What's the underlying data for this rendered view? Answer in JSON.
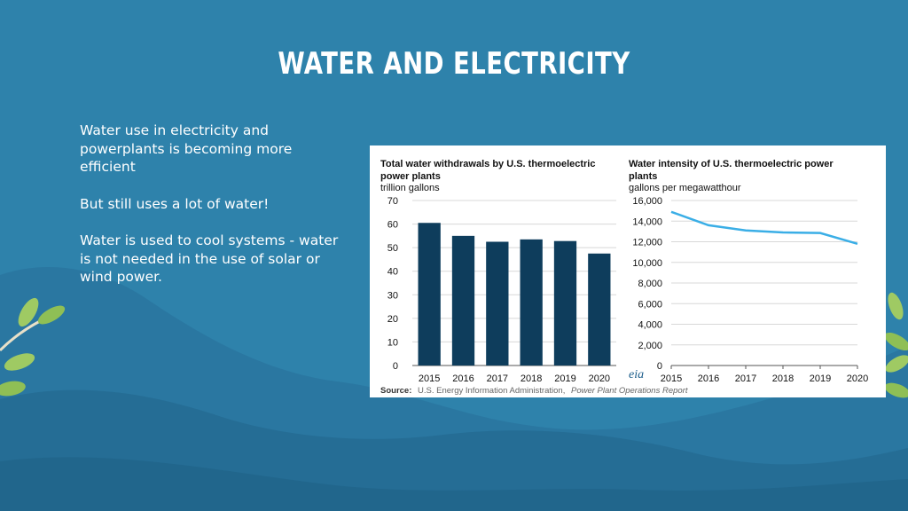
{
  "slide": {
    "title": "WATER AND ELECTRICITY",
    "paragraphs": [
      "Water use in electricity and powerplants is becoming more efficient",
      "But still uses a lot of water!",
      "Water is used to cool systems - water is not needed in the use of solar or wind power."
    ]
  },
  "colors": {
    "background": "#2e82ab",
    "bar": "#0e3d5c",
    "line": "#3aaee6",
    "leaf": "#9fca63"
  },
  "source": {
    "label": "Source:",
    "text": "U.S. Energy Information Administration,",
    "report": "Power Plant Operations Report"
  },
  "chart_data": [
    {
      "type": "bar",
      "title_lines": [
        "Total water withdrawals by U.S. thermoelectric",
        "power plants"
      ],
      "units": "trillion gallons",
      "categories": [
        "2015",
        "2016",
        "2017",
        "2018",
        "2019",
        "2020"
      ],
      "values": [
        60.5,
        55,
        52.5,
        53.5,
        52.8,
        47.5
      ],
      "ylim": [
        0,
        70
      ],
      "yticks": [
        "0",
        "10",
        "20",
        "30",
        "40",
        "50",
        "60",
        "70"
      ]
    },
    {
      "type": "line",
      "title_lines": [
        "Water intensity of U.S. thermoelectric power",
        "plants"
      ],
      "units": "gallons per megawatthour",
      "x": [
        "2015",
        "2016",
        "2017",
        "2018",
        "2019",
        "2020"
      ],
      "values": [
        14900,
        13600,
        13100,
        12900,
        12850,
        11800
      ],
      "ylim": [
        0,
        16000
      ],
      "yticks": [
        "0",
        "2,000",
        "4,000",
        "6,000",
        "8,000",
        "10,000",
        "12,000",
        "14,000",
        "16,000"
      ],
      "logo_text": "eia"
    }
  ]
}
